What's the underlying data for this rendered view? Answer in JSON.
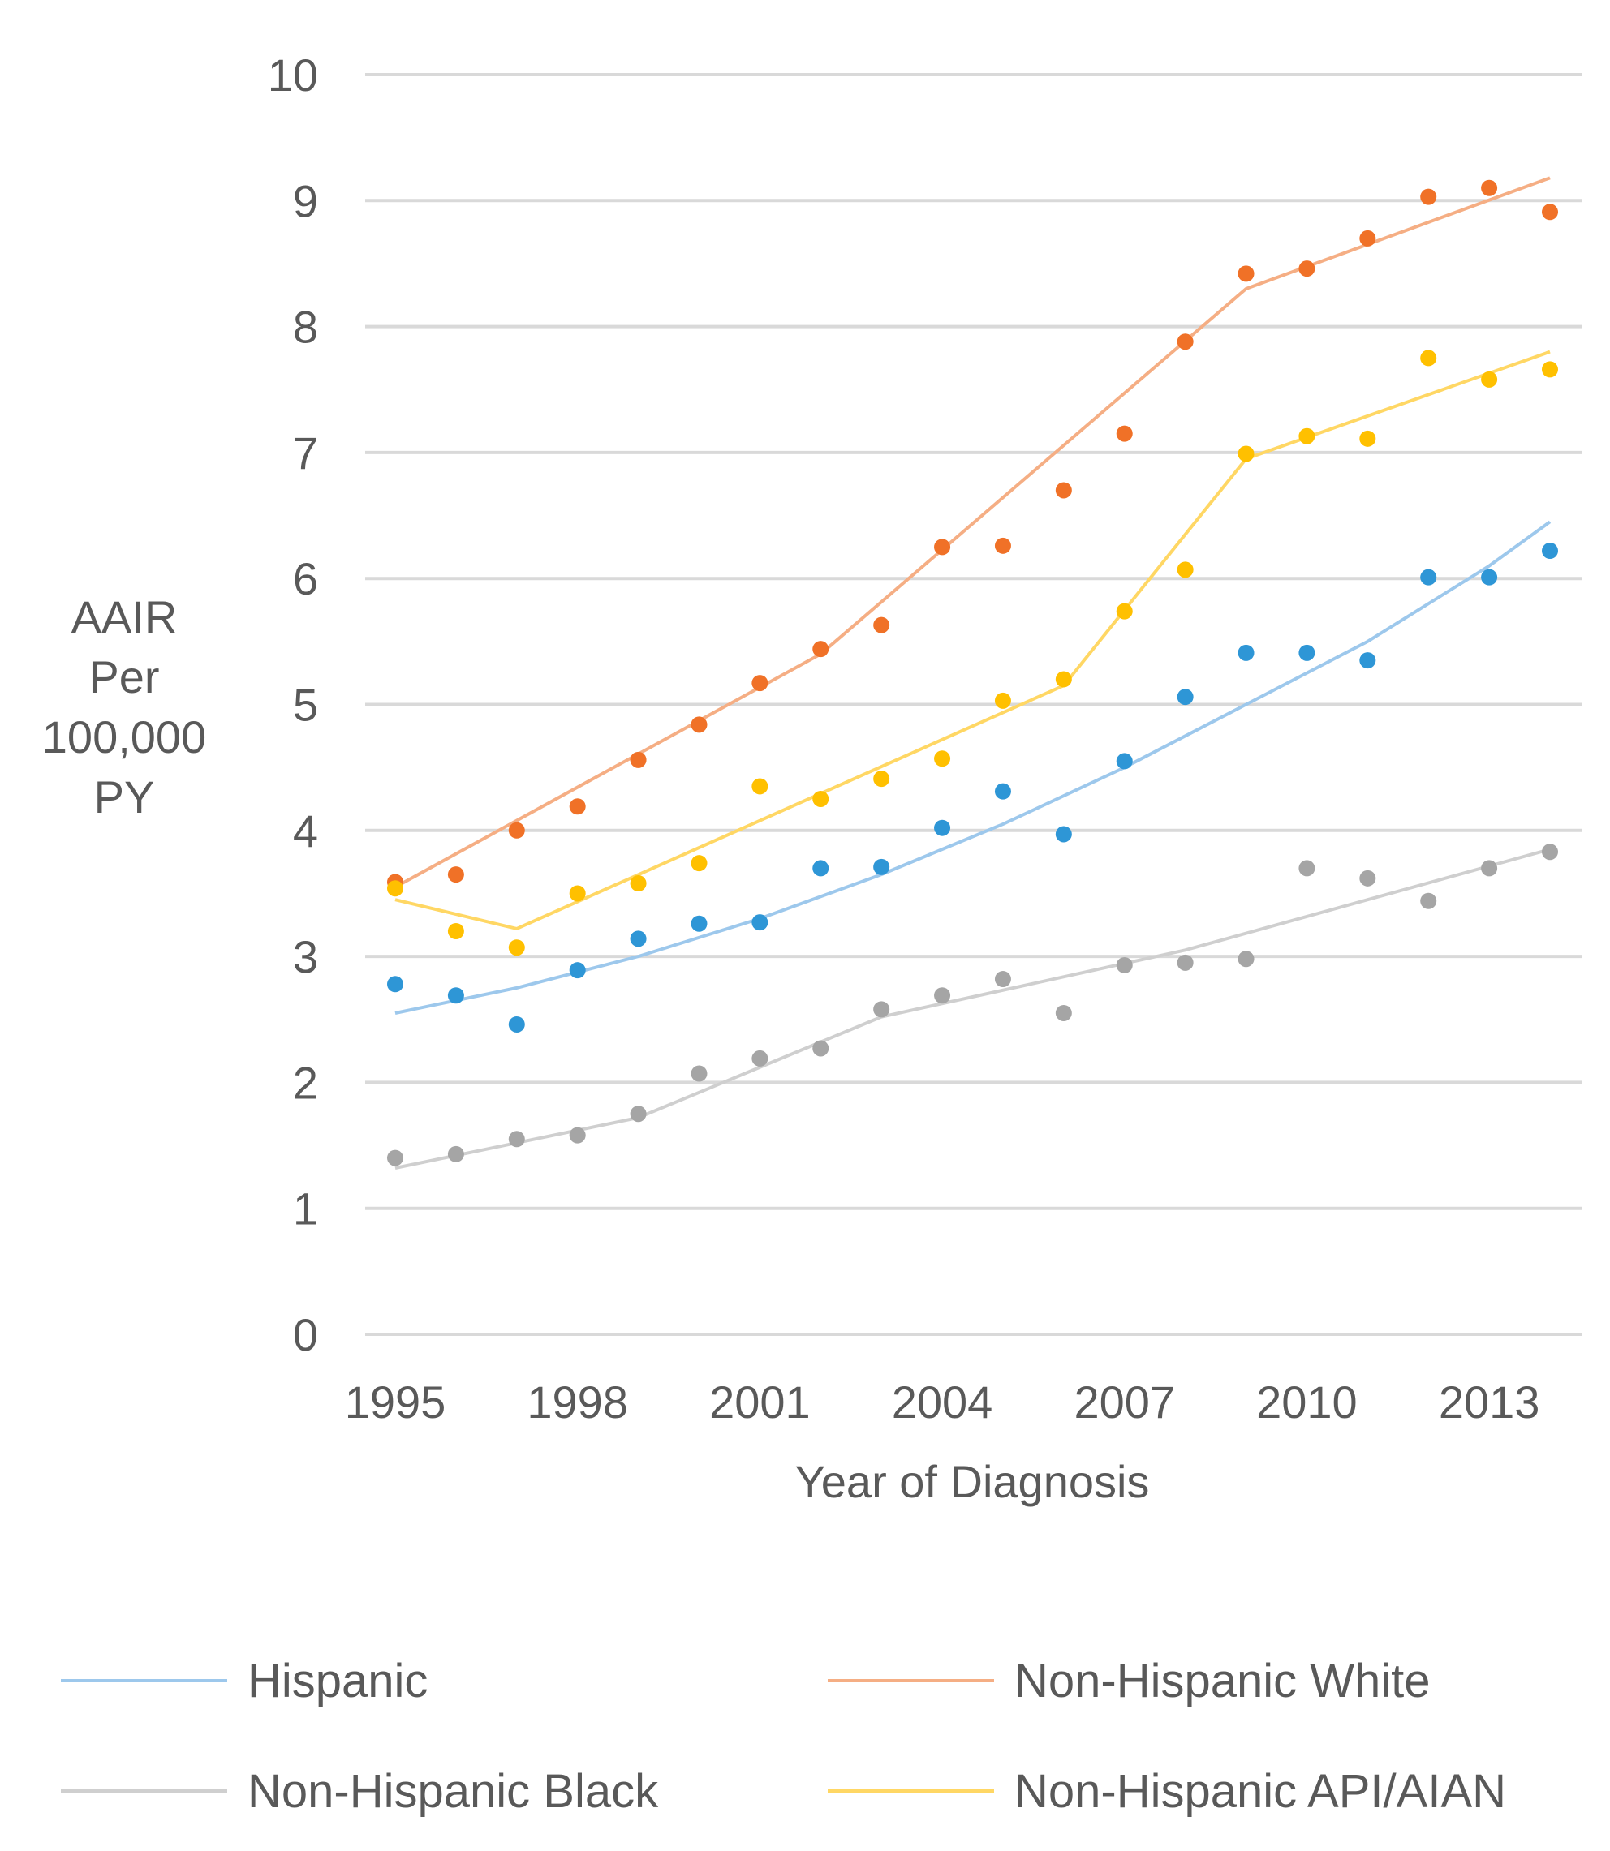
{
  "chart_data": {
    "type": "scatter",
    "title": "",
    "xlabel": "Year of Diagnosis",
    "ylabel_lines": [
      "AAIR",
      "Per",
      "100,000",
      "PY"
    ],
    "xlim": [
      1995,
      2014
    ],
    "ylim": [
      0,
      10
    ],
    "x_ticks": [
      1995,
      1998,
      2001,
      2004,
      2007,
      2010,
      2013
    ],
    "y_ticks": [
      0,
      1,
      2,
      3,
      4,
      5,
      6,
      7,
      8,
      9,
      10
    ],
    "grid": true,
    "legend_position": "bottom",
    "x": [
      1995,
      1996,
      1997,
      1998,
      1999,
      2000,
      2001,
      2002,
      2003,
      2004,
      2005,
      2006,
      2007,
      2008,
      2009,
      2010,
      2011,
      2012,
      2013,
      2014
    ],
    "series": [
      {
        "name": "Hispanic",
        "color": "#2E96D6",
        "trend_color": "#9DC8EC",
        "values": [
          2.78,
          2.69,
          2.46,
          2.89,
          3.14,
          3.26,
          3.27,
          3.7,
          3.71,
          4.02,
          4.31,
          3.97,
          4.55,
          5.06,
          5.41,
          5.41,
          5.35,
          6.01,
          6.01,
          6.22
        ],
        "trend_x": [
          1995,
          1997,
          1999,
          2001,
          2003,
          2005,
          2007,
          2009,
          2011,
          2013,
          2014
        ],
        "trend_y": [
          2.55,
          2.75,
          3.0,
          3.3,
          3.65,
          4.05,
          4.5,
          5.0,
          5.5,
          6.1,
          6.45
        ]
      },
      {
        "name": "Non-Hispanic White",
        "color": "#F07127",
        "trend_color": "#F5AE84",
        "values": [
          3.59,
          3.65,
          4.0,
          4.19,
          4.56,
          4.84,
          5.17,
          5.44,
          5.63,
          6.25,
          6.26,
          6.7,
          7.15,
          7.88,
          8.42,
          8.46,
          8.7,
          9.03,
          9.1,
          8.91
        ],
        "trend_x": [
          1995,
          2002,
          2009,
          2014
        ],
        "trend_y": [
          3.55,
          5.4,
          8.3,
          9.18
        ]
      },
      {
        "name": "Non-Hispanic Black",
        "color": "#A5A5A5",
        "trend_color": "#CFCFCF",
        "values": [
          1.4,
          1.43,
          1.55,
          1.58,
          1.75,
          2.07,
          2.19,
          2.27,
          2.58,
          2.69,
          2.82,
          2.55,
          2.93,
          2.95,
          2.98,
          3.7,
          3.62,
          3.44,
          3.7,
          3.83
        ],
        "trend_x": [
          1995,
          1999,
          2003,
          2008,
          2014
        ],
        "trend_y": [
          1.32,
          1.72,
          2.52,
          3.05,
          3.85
        ]
      },
      {
        "name": "Non-Hispanic API/AIAN",
        "color": "#FFC000",
        "trend_color": "#FFD764",
        "values": [
          3.54,
          3.2,
          3.07,
          3.5,
          3.58,
          3.74,
          4.35,
          4.25,
          4.41,
          4.57,
          5.03,
          5.2,
          5.74,
          6.07,
          6.99,
          7.13,
          7.11,
          7.75,
          7.58,
          7.66
        ],
        "trend_x": [
          1995,
          1997,
          2006,
          2009,
          2014
        ],
        "trend_y": [
          3.45,
          3.22,
          5.15,
          6.95,
          7.8
        ]
      }
    ],
    "legend_order": [
      "Hispanic",
      "Non-Hispanic White",
      "Non-Hispanic Black",
      "Non-Hispanic API/AIAN"
    ]
  }
}
